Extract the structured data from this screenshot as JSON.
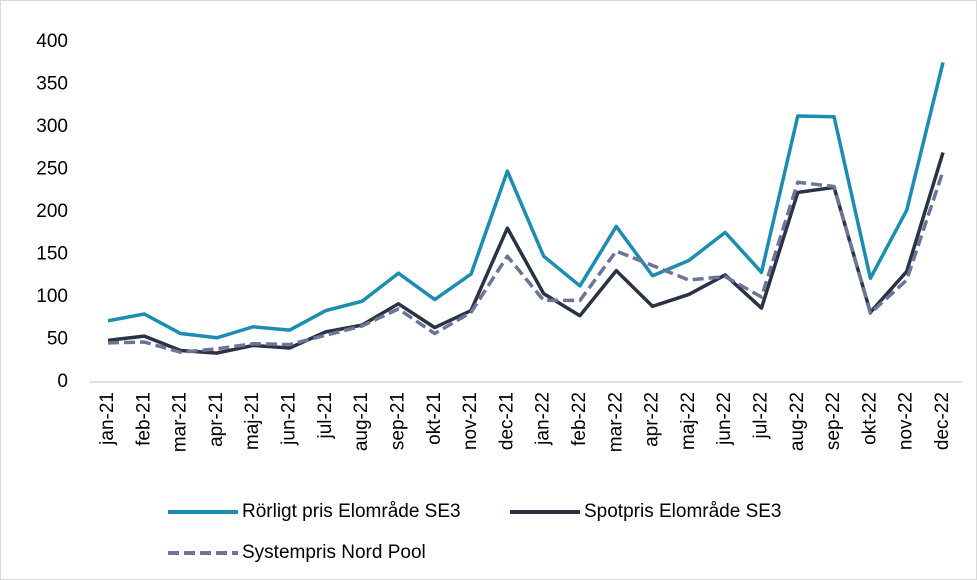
{
  "chart_data": {
    "type": "line",
    "categories": [
      "jan-21",
      "feb-21",
      "mar-21",
      "apr-21",
      "maj-21",
      "jun-21",
      "jul-21",
      "aug-21",
      "sep-21",
      "okt-21",
      "nov-21",
      "dec-21",
      "jan-22",
      "feb-22",
      "mar-22",
      "apr-22",
      "maj-22",
      "jun-22",
      "jul-22",
      "aug-22",
      "sep-22",
      "okt-22",
      "nov-22",
      "dec-22"
    ],
    "series": [
      {
        "name": "Rörligt pris Elområde SE3",
        "color": "#1b8db0",
        "dashed": false,
        "values": [
          72,
          80,
          57,
          52,
          65,
          61,
          84,
          95,
          128,
          97,
          127,
          248,
          148,
          113,
          183,
          125,
          143,
          176,
          129,
          313,
          312,
          122,
          202,
          376
        ]
      },
      {
        "name": "Spotpris Elområde SE3",
        "color": "#2a3343",
        "dashed": false,
        "values": [
          49,
          54,
          37,
          34,
          43,
          40,
          59,
          67,
          92,
          64,
          84,
          181,
          104,
          78,
          131,
          89,
          103,
          126,
          87,
          223,
          229,
          82,
          130,
          270
        ]
      },
      {
        "name": "Systempris Nord Pool",
        "color": "#6e7398",
        "dashed": true,
        "values": [
          46,
          47,
          35,
          39,
          45,
          44,
          55,
          66,
          86,
          57,
          82,
          148,
          96,
          96,
          154,
          137,
          120,
          124,
          100,
          235,
          230,
          81,
          120,
          248
        ]
      }
    ],
    "ylim": [
      0,
      400
    ],
    "yticks": [
      0,
      50,
      100,
      150,
      200,
      250,
      300,
      350,
      400
    ],
    "grid": false
  }
}
